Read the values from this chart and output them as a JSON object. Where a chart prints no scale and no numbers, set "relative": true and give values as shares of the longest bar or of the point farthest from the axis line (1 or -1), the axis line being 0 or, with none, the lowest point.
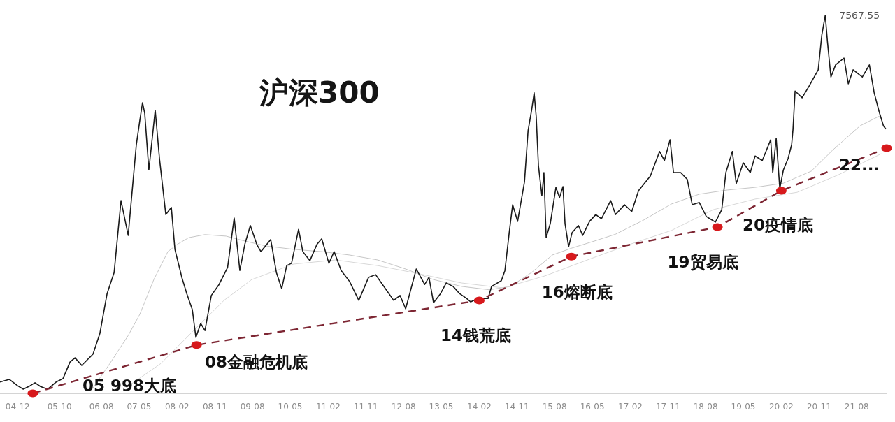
{
  "chart_data": {
    "type": "line",
    "title": "沪深300",
    "relative": true,
    "marker": "none",
    "xlim": [
      "2004-07-26",
      "2022-03-06"
    ],
    "xticks": [
      {
        "value": "2004-12",
        "label": "04-12"
      },
      {
        "value": "2005-10",
        "label": "05-10"
      },
      {
        "value": "2006-08",
        "label": "06-08"
      },
      {
        "value": "2007-05",
        "label": "07-05"
      },
      {
        "value": "2008-02",
        "label": "08-02"
      },
      {
        "value": "2008-11",
        "label": "08-11"
      },
      {
        "value": "2009-08",
        "label": "09-08"
      },
      {
        "value": "2010-05",
        "label": "10-05"
      },
      {
        "value": "2011-02",
        "label": "11-02"
      },
      {
        "value": "2011-11",
        "label": "11-11"
      },
      {
        "value": "2012-08",
        "label": "12-08"
      },
      {
        "value": "2013-05",
        "label": "13-05"
      },
      {
        "value": "2014-02",
        "label": "14-02"
      },
      {
        "value": "2014-11",
        "label": "14-11"
      },
      {
        "value": "2015-08",
        "label": "15-08"
      },
      {
        "value": "2016-05",
        "label": "16-05"
      },
      {
        "value": "2017-02",
        "label": "17-02"
      },
      {
        "value": "2017-11",
        "label": "17-11"
      },
      {
        "value": "2018-08",
        "label": "18-08"
      },
      {
        "value": "2019-05",
        "label": "19-05"
      },
      {
        "value": "2020-02",
        "label": "20-02"
      },
      {
        "value": "2020-11",
        "label": "20-11"
      },
      {
        "value": "2021-08",
        "label": "21-08"
      }
    ],
    "series": [
      {
        "color": "#c6c6c6",
        "x": [
          "2006-05-16",
          "2006-10-01",
          "2007-02-11",
          "2007-05-06",
          "2007-08-16",
          "2007-11-26",
          "2008-02-01",
          "2008-04-26",
          "2008-08-21",
          "2009-01-21",
          "2009-06-06",
          "2009-11-06",
          "2010-05-26",
          "2010-12-16",
          "2011-07-06",
          "2012-01-26",
          "2012-08-16",
          "2013-03-06",
          "2013-09-26",
          "2014-04-16",
          "2014-09-16",
          "2015-02-16",
          "2015-07-16",
          "2015-12-01",
          "2016-05-16",
          "2016-10-16",
          "2017-05-06",
          "2017-11-26",
          "2018-06-16",
          "2019-01-06",
          "2019-07-26",
          "2020-02-16",
          "2020-09-06",
          "2021-02-06",
          "2021-08-26",
          "2022-01-26"
        ],
        "values": [
          0.006,
          0.079,
          0.153,
          0.209,
          0.301,
          0.375,
          0.394,
          0.412,
          0.42,
          0.416,
          0.403,
          0.39,
          0.381,
          0.375,
          0.366,
          0.353,
          0.329,
          0.301,
          0.283,
          0.274,
          0.283,
          0.32,
          0.366,
          0.384,
          0.403,
          0.421,
          0.458,
          0.501,
          0.527,
          0.538,
          0.545,
          0.556,
          0.588,
          0.643,
          0.708,
          0.736
        ]
      },
      {
        "color": "#d8d8d8",
        "x": [
          "2007-01-26",
          "2007-10-06",
          "2008-06-16",
          "2009-01-06",
          "2009-07-26",
          "2010-05-26",
          "2011-03-26",
          "2012-01-26",
          "2012-11-26",
          "2013-09-26",
          "2014-07-26",
          "2015-05-26",
          "2016-03-26",
          "2017-01-26",
          "2017-11-26",
          "2018-09-26",
          "2019-07-26",
          "2020-05-26",
          "2021-03-26",
          "2022-01-26"
        ],
        "values": [
          0.015,
          0.079,
          0.172,
          0.246,
          0.301,
          0.342,
          0.353,
          0.338,
          0.316,
          0.292,
          0.279,
          0.311,
          0.353,
          0.394,
          0.431,
          0.486,
          0.514,
          0.532,
          0.579,
          0.634
        ]
      },
      {
        "color": "#1a1a1a",
        "x": [
          "2004-07-26",
          "2004-10-01",
          "2004-12-01",
          "2005-01-11",
          "2005-03-01",
          "2005-04-06",
          "2005-05-16",
          "2005-07-06",
          "2005-09-06",
          "2005-10-26",
          "2005-12-16",
          "2006-01-21",
          "2006-03-11",
          "2006-06-01",
          "2006-07-21",
          "2006-09-11",
          "2006-11-01",
          "2006-12-21",
          "2007-02-11",
          "2007-04-11",
          "2007-05-06",
          "2007-05-26",
          "2007-06-11",
          "2007-07-11",
          "2007-08-26",
          "2007-09-26",
          "2007-11-11",
          "2007-12-21",
          "2008-01-16",
          "2008-03-06",
          "2008-04-11",
          "2008-05-21",
          "2008-06-16",
          "2008-07-21",
          "2008-08-21",
          "2008-10-06",
          "2008-12-01",
          "2009-02-01",
          "2009-03-21",
          "2009-05-01",
          "2009-06-06",
          "2009-07-16",
          "2009-09-01",
          "2009-10-01",
          "2009-12-11",
          "2010-01-21",
          "2010-03-01",
          "2010-04-06",
          "2010-05-11",
          "2010-07-01",
          "2010-08-01",
          "2010-09-21",
          "2010-11-11",
          "2010-12-16",
          "2011-02-06",
          "2011-03-16",
          "2011-05-06",
          "2011-07-06",
          "2011-09-11",
          "2011-11-21",
          "2012-01-11",
          "2012-03-01",
          "2012-05-21",
          "2012-07-06",
          "2012-08-16",
          "2012-11-01",
          "2013-01-01",
          "2013-02-01",
          "2013-03-06",
          "2013-04-26",
          "2013-06-06",
          "2013-07-26",
          "2013-09-11",
          "2013-11-01",
          "2013-12-01",
          "2014-01-21",
          "2014-04-06",
          "2014-05-01",
          "2014-07-11",
          "2014-08-06",
          "2014-09-06",
          "2014-10-01",
          "2014-11-06",
          "2014-12-26",
          "2015-01-21",
          "2015-02-16",
          "2015-03-06",
          "2015-03-21",
          "2015-04-06",
          "2015-05-01",
          "2015-05-16",
          "2015-06-01",
          "2015-07-01",
          "2015-08-11",
          "2015-09-06",
          "2015-10-01",
          "2015-10-16",
          "2015-11-11",
          "2015-12-06",
          "2016-01-21",
          "2016-02-21",
          "2016-04-11",
          "2016-05-26",
          "2016-07-06",
          "2016-09-11",
          "2016-10-16",
          "2016-12-21",
          "2017-02-11",
          "2017-04-01",
          "2017-06-26",
          "2017-09-01",
          "2017-10-06",
          "2017-11-16",
          "2017-12-11",
          "2018-02-01",
          "2018-03-21",
          "2018-04-26",
          "2018-06-16",
          "2018-08-06",
          "2018-10-11",
          "2018-11-26",
          "2018-12-26",
          "2019-02-11",
          "2019-03-11",
          "2019-05-01",
          "2019-06-21",
          "2019-07-26",
          "2019-09-16",
          "2019-11-16",
          "2019-12-01",
          "2019-12-26",
          "2020-01-21",
          "2020-02-16",
          "2020-03-21",
          "2020-04-16",
          "2020-04-26",
          "2020-05-11",
          "2020-07-01",
          "2020-08-21",
          "2020-10-26",
          "2020-11-21",
          "2020-12-16",
          "2021-01-01",
          "2021-01-26",
          "2021-03-01",
          "2021-05-01",
          "2021-06-01",
          "2021-07-06",
          "2021-09-11",
          "2021-11-01",
          "2021-12-06",
          "2022-01-11",
          "2022-02-11",
          "2022-03-01"
        ],
        "values": [
          0.03,
          0.037,
          0.02,
          0.011,
          0.02,
          0.028,
          0.018,
          0.011,
          0.03,
          0.039,
          0.083,
          0.094,
          0.074,
          0.104,
          0.159,
          0.264,
          0.32,
          0.51,
          0.418,
          0.658,
          0.721,
          0.769,
          0.741,
          0.591,
          0.749,
          0.621,
          0.473,
          0.492,
          0.381,
          0.307,
          0.264,
          0.222,
          0.148,
          0.185,
          0.166,
          0.259,
          0.288,
          0.333,
          0.464,
          0.325,
          0.394,
          0.444,
          0.394,
          0.375,
          0.407,
          0.32,
          0.277,
          0.338,
          0.344,
          0.434,
          0.375,
          0.351,
          0.394,
          0.409,
          0.344,
          0.375,
          0.325,
          0.296,
          0.246,
          0.307,
          0.314,
          0.288,
          0.246,
          0.259,
          0.224,
          0.329,
          0.288,
          0.307,
          0.24,
          0.264,
          0.292,
          0.283,
          0.264,
          0.251,
          0.242,
          0.251,
          0.251,
          0.283,
          0.298,
          0.325,
          0.425,
          0.499,
          0.455,
          0.56,
          0.695,
          0.75,
          0.795,
          0.732,
          0.603,
          0.523,
          0.584,
          0.412,
          0.449,
          0.545,
          0.518,
          0.547,
          0.449,
          0.388,
          0.425,
          0.444,
          0.418,
          0.455,
          0.473,
          0.462,
          0.51,
          0.473,
          0.499,
          0.481,
          0.536,
          0.575,
          0.64,
          0.616,
          0.671,
          0.584,
          0.584,
          0.566,
          0.499,
          0.505,
          0.468,
          0.453,
          0.486,
          0.584,
          0.64,
          0.555,
          0.61,
          0.584,
          0.628,
          0.616,
          0.671,
          0.584,
          0.675,
          0.542,
          0.591,
          0.621,
          0.658,
          0.699,
          0.8,
          0.782,
          0.813,
          0.856,
          0.948,
          1.0,
          0.93,
          0.837,
          0.869,
          0.887,
          0.819,
          0.856,
          0.837,
          0.869,
          0.795,
          0.745,
          0.708,
          0.699
        ]
      },
      {
        "color": "#7d2633",
        "line_style": "dashed",
        "x": [
          "2005-03-21",
          "2008-06-21",
          "2014-02-01",
          "2015-12-01",
          "2018-10-26",
          "2020-02-01",
          "2022-03-06"
        ],
        "values": [
          0,
          0.128,
          0.246,
          0.362,
          0.44,
          0.536,
          0.649
        ]
      },
      {
        "type": "scatter",
        "marker": "circle",
        "color": "#d7191c",
        "x": [
          "2005-03-21",
          "2008-06-21",
          "2014-02-01",
          "2015-12-01",
          "2018-10-26",
          "2020-02-01",
          "2022-03-06"
        ],
        "values": [
          0,
          0.128,
          0.246,
          0.362,
          0.44,
          0.536,
          0.649
        ]
      }
    ],
    "annotations": [
      "05 998大底",
      {
        "text": "08金融危机底",
        "x": "2008-06-21",
        "y": 0.128
      },
      {
        "text": "14钱荒底",
        "x": "2014-02-01",
        "y": 0.246
      },
      {
        "text": "16熔断底",
        "x": "2015-12-01",
        "y": 0.362
      },
      {
        "text": "19贸易底",
        "x": "2018-10-26",
        "y": 0.44
      },
      {
        "text": "20疫情底",
        "x": "2020-02-01",
        "y": 0.536
      },
      {
        "text": "22...",
        "x": "2022-03-06",
        "y": 0.649
      },
      {
        "text": "7567.55",
        "x": "2020-12-16",
        "y": 1
      }
    ]
  }
}
